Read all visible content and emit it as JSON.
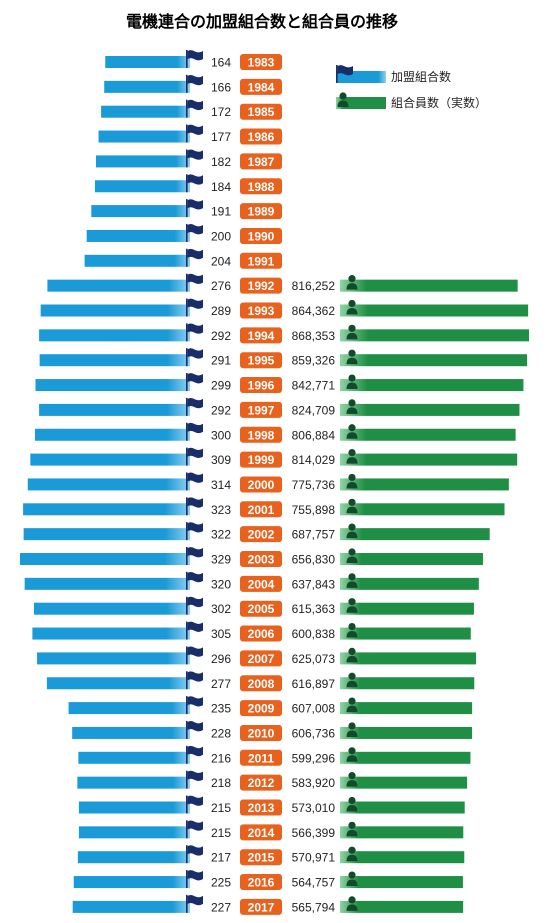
{
  "chart_data": {
    "type": "bar",
    "title": "電機連合の加盟組合数と組合員の推移",
    "categories": [
      "1983",
      "1984",
      "1985",
      "1986",
      "1987",
      "1988",
      "1989",
      "1990",
      "1991",
      "1992",
      "1993",
      "1994",
      "1995",
      "1996",
      "1997",
      "1998",
      "1999",
      "2000",
      "2001",
      "2002",
      "2003",
      "2004",
      "2005",
      "2006",
      "2007",
      "2008",
      "2009",
      "2010",
      "2011",
      "2012",
      "2013",
      "2014",
      "2015",
      "2016",
      "2017"
    ],
    "series": [
      {
        "name": "加盟組合数",
        "labels": [
          "164",
          "166",
          "172",
          "177",
          "182",
          "184",
          "191",
          "200",
          "204",
          "276",
          "289",
          "292",
          "291",
          "299",
          "292",
          "300",
          "309",
          "314",
          "323",
          "322",
          "329",
          "320",
          "302",
          "305",
          "296",
          "277",
          "235",
          "228",
          "216",
          "218",
          "215",
          "215",
          "217",
          "225",
          "227"
        ],
        "values": [
          164,
          166,
          172,
          177,
          182,
          184,
          191,
          200,
          204,
          276,
          289,
          292,
          291,
          299,
          292,
          300,
          309,
          314,
          323,
          322,
          329,
          320,
          302,
          305,
          296,
          277,
          235,
          228,
          216,
          218,
          215,
          215,
          217,
          225,
          227
        ]
      },
      {
        "name": "組合員数（実数）",
        "labels": [
          "",
          "",
          "",
          "",
          "",
          "",
          "",
          "",
          "",
          "816,252",
          "864,362",
          "868,353",
          "859,326",
          "842,771",
          "824,709",
          "806,884",
          "814,029",
          "775,736",
          "755,898",
          "687,757",
          "656,830",
          "637,843",
          "615,363",
          "600,838",
          "625,073",
          "616,897",
          "607,008",
          "606,736",
          "599,296",
          "583,920",
          "573,010",
          "566,399",
          "570,971",
          "564,757",
          "565,794"
        ],
        "values": [
          null,
          null,
          null,
          null,
          null,
          null,
          null,
          null,
          null,
          816252,
          864362,
          868353,
          859326,
          842771,
          824709,
          806884,
          814029,
          775736,
          755898,
          687757,
          656830,
          637843,
          615363,
          600838,
          625073,
          616897,
          607008,
          606736,
          599296,
          583920,
          573010,
          566399,
          570971,
          564757,
          565794
        ]
      }
    ],
    "legend": "top-right",
    "colors": {
      "unions": "#1a9ad6",
      "members": "#1e8f45",
      "year_badge": "#e8611d",
      "flag": "#1a2d6b",
      "person": "#134a2a"
    }
  }
}
